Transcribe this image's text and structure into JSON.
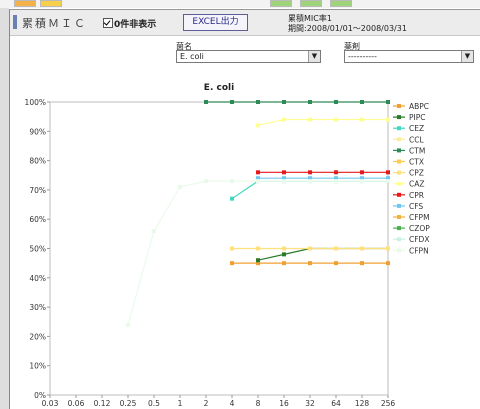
{
  "window": {
    "app_title": "累積ＭＩＣ",
    "checkbox_label": "0件非表示",
    "excel_button": "EXCEL出力",
    "period_title": "累積MIC率1",
    "period_range": "期間:2008/01/01〜2008/03/31"
  },
  "filters": {
    "organism_label": "菌名",
    "organism_value": "E. coli",
    "drug_label": "薬剤",
    "drug_value": "----------"
  },
  "colors": {
    "header_bg": "#ececec",
    "tiles": [
      "#f6b24a",
      "#f6d04a",
      "#9fd47a",
      "#9fd47a",
      "#9fd47a"
    ]
  },
  "chart_data": {
    "type": "line",
    "title": "E. coli",
    "xlabel": "",
    "ylabel": "",
    "x": [
      "0.03",
      "0.06",
      "0.12",
      "0.25",
      "0.5",
      "1",
      "2",
      "4",
      "8",
      "16",
      "32",
      "64",
      "128",
      "256"
    ],
    "y_ticks": [
      "0%",
      "10%",
      "20%",
      "30%",
      "40%",
      "50%",
      "60%",
      "70%",
      "80%",
      "90%",
      "100%"
    ],
    "ylim": [
      0,
      100
    ],
    "grid": false,
    "legend_position": "right",
    "series": [
      {
        "name": "ABPC",
        "color": "#f0a030",
        "values": [
          null,
          null,
          null,
          null,
          null,
          null,
          null,
          45,
          45,
          45,
          45,
          45,
          45,
          45
        ]
      },
      {
        "name": "PIPC",
        "color": "#2a7a2a",
        "values": [
          null,
          null,
          null,
          null,
          null,
          null,
          null,
          null,
          46,
          48,
          50,
          50,
          50,
          50
        ]
      },
      {
        "name": "CEZ",
        "color": "#40d8c0",
        "values": [
          null,
          null,
          null,
          null,
          null,
          null,
          null,
          67,
          73,
          73,
          73,
          73,
          73,
          73
        ]
      },
      {
        "name": "CCL",
        "color": "#ffe8a0",
        "values": [
          null,
          null,
          null,
          null,
          null,
          null,
          null,
          null,
          null,
          null,
          null,
          null,
          null,
          null
        ]
      },
      {
        "name": "CTM",
        "color": "#2e8b57",
        "values": [
          null,
          null,
          null,
          null,
          null,
          null,
          100,
          100,
          100,
          100,
          100,
          100,
          100,
          100
        ]
      },
      {
        "name": "CTX",
        "color": "#ffc850",
        "values": [
          null,
          null,
          null,
          null,
          null,
          null,
          null,
          null,
          null,
          null,
          null,
          null,
          null,
          null
        ]
      },
      {
        "name": "CPZ",
        "color": "#ffe07a",
        "values": [
          null,
          null,
          null,
          null,
          null,
          null,
          null,
          50,
          50,
          50,
          50,
          50,
          50,
          50
        ]
      },
      {
        "name": "CAZ",
        "color": "#ffff90",
        "values": [
          null,
          null,
          null,
          null,
          null,
          null,
          null,
          null,
          92,
          94,
          94,
          94,
          94,
          94
        ]
      },
      {
        "name": "CPR",
        "color": "#e41a1c",
        "values": [
          null,
          null,
          null,
          null,
          null,
          null,
          null,
          null,
          76,
          76,
          76,
          76,
          76,
          76
        ]
      },
      {
        "name": "CFS",
        "color": "#70c8f0",
        "values": [
          null,
          null,
          null,
          null,
          null,
          null,
          null,
          null,
          74,
          74,
          74,
          74,
          74,
          74
        ]
      },
      {
        "name": "CFPM",
        "color": "#f4b040",
        "values": [
          null,
          null,
          null,
          null,
          null,
          null,
          null,
          null,
          null,
          null,
          null,
          null,
          null,
          null
        ]
      },
      {
        "name": "CZOP",
        "color": "#4caf50",
        "values": [
          null,
          null,
          null,
          null,
          null,
          null,
          null,
          null,
          null,
          null,
          null,
          null,
          null,
          null
        ]
      },
      {
        "name": "CFDX",
        "color": "#c8f0e8",
        "values": [
          null,
          null,
          null,
          null,
          null,
          null,
          null,
          null,
          null,
          null,
          null,
          null,
          null,
          null
        ]
      },
      {
        "name": "CFPN",
        "color": "#eafaea",
        "values": [
          null,
          null,
          null,
          24,
          56,
          71,
          73,
          73,
          73,
          73,
          73,
          73,
          73,
          73
        ]
      }
    ]
  }
}
